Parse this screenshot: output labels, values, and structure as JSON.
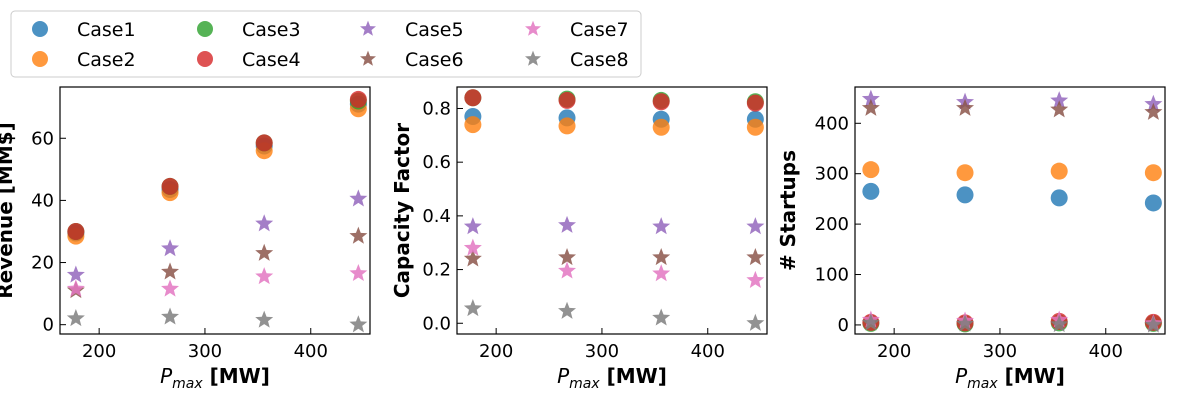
{
  "legend": {
    "entries": [
      {
        "label": "Case1",
        "color": "#1f77b4",
        "marker": "circle"
      },
      {
        "label": "Case2",
        "color": "#ff7f0e",
        "marker": "circle"
      },
      {
        "label": "Case3",
        "color": "#2ca02c",
        "marker": "circle"
      },
      {
        "label": "Case4",
        "color": "#d62728",
        "marker": "circle"
      },
      {
        "label": "Case5",
        "color": "#9467bd",
        "marker": "star"
      },
      {
        "label": "Case6",
        "color": "#8c564b",
        "marker": "star"
      },
      {
        "label": "Case7",
        "color": "#e377c2",
        "marker": "star"
      },
      {
        "label": "Case8",
        "color": "#7f7f7f",
        "marker": "star"
      }
    ]
  },
  "chart_data": [
    {
      "type": "scatter",
      "xlabel": "P_max [MW]",
      "ylabel": "Revenue [MM$]",
      "xlim": [
        163,
        456
      ],
      "ylim": [
        -3,
        76.5
      ],
      "xticks": [
        200,
        300,
        400
      ],
      "yticks": [
        0,
        20,
        40,
        60
      ],
      "x": [
        178,
        267,
        356,
        445
      ],
      "series": [
        {
          "name": "Case1",
          "values": [
            29.5,
            43.5,
            57.5,
            71.0
          ]
        },
        {
          "name": "Case2",
          "values": [
            28.5,
            42.5,
            56.0,
            69.5
          ]
        },
        {
          "name": "Case3",
          "values": [
            30.0,
            44.5,
            58.5,
            72.0
          ]
        },
        {
          "name": "Case4",
          "values": [
            30.0,
            44.5,
            58.5,
            72.5
          ]
        },
        {
          "name": "Case5",
          "values": [
            16.0,
            24.5,
            32.5,
            40.5
          ]
        },
        {
          "name": "Case6",
          "values": [
            11.0,
            17.0,
            23.0,
            28.5
          ]
        },
        {
          "name": "Case7",
          "values": [
            11.5,
            11.5,
            15.5,
            16.5
          ]
        },
        {
          "name": "Case8",
          "values": [
            2.0,
            2.5,
            1.5,
            0.0
          ]
        }
      ]
    },
    {
      "type": "scatter",
      "xlabel": "P_max [MW]",
      "ylabel": "Capacity Factor",
      "xlim": [
        163,
        456
      ],
      "ylim": [
        -0.04,
        0.88
      ],
      "xticks": [
        200,
        300,
        400
      ],
      "yticks": [
        0.0,
        0.2,
        0.4,
        0.6,
        0.8
      ],
      "x": [
        178,
        267,
        356,
        445
      ],
      "series": [
        {
          "name": "Case1",
          "values": [
            0.77,
            0.765,
            0.76,
            0.76
          ]
        },
        {
          "name": "Case2",
          "values": [
            0.74,
            0.735,
            0.73,
            0.73
          ]
        },
        {
          "name": "Case3",
          "values": [
            0.84,
            0.835,
            0.83,
            0.825
          ]
        },
        {
          "name": "Case4",
          "values": [
            0.84,
            0.83,
            0.825,
            0.82
          ]
        },
        {
          "name": "Case5",
          "values": [
            0.36,
            0.365,
            0.36,
            0.36
          ]
        },
        {
          "name": "Case6",
          "values": [
            0.24,
            0.245,
            0.245,
            0.245
          ]
        },
        {
          "name": "Case7",
          "values": [
            0.28,
            0.195,
            0.185,
            0.16
          ]
        },
        {
          "name": "Case8",
          "values": [
            0.055,
            0.045,
            0.02,
            0.0
          ]
        }
      ]
    },
    {
      "type": "scatter",
      "xlabel": "P_max [MW]",
      "ylabel": "# Startups",
      "xlim": [
        163,
        456
      ],
      "ylim": [
        -18,
        472
      ],
      "xticks": [
        200,
        300,
        400
      ],
      "yticks": [
        0,
        100,
        200,
        300,
        400
      ],
      "x": [
        178,
        267,
        356,
        445
      ],
      "series": [
        {
          "name": "Case1",
          "values": [
            265,
            258,
            252,
            242
          ]
        },
        {
          "name": "Case2",
          "values": [
            308,
            302,
            305,
            302
          ]
        },
        {
          "name": "Case3",
          "values": [
            3,
            2,
            4,
            3
          ]
        },
        {
          "name": "Case4",
          "values": [
            5,
            4,
            7,
            5
          ]
        },
        {
          "name": "Case5",
          "values": [
            448,
            442,
            445,
            438
          ]
        },
        {
          "name": "Case6",
          "values": [
            430,
            430,
            427,
            422
          ]
        },
        {
          "name": "Case7",
          "values": [
            10,
            8,
            10,
            3
          ]
        },
        {
          "name": "Case8",
          "values": [
            4,
            2,
            1,
            0
          ]
        }
      ]
    }
  ]
}
